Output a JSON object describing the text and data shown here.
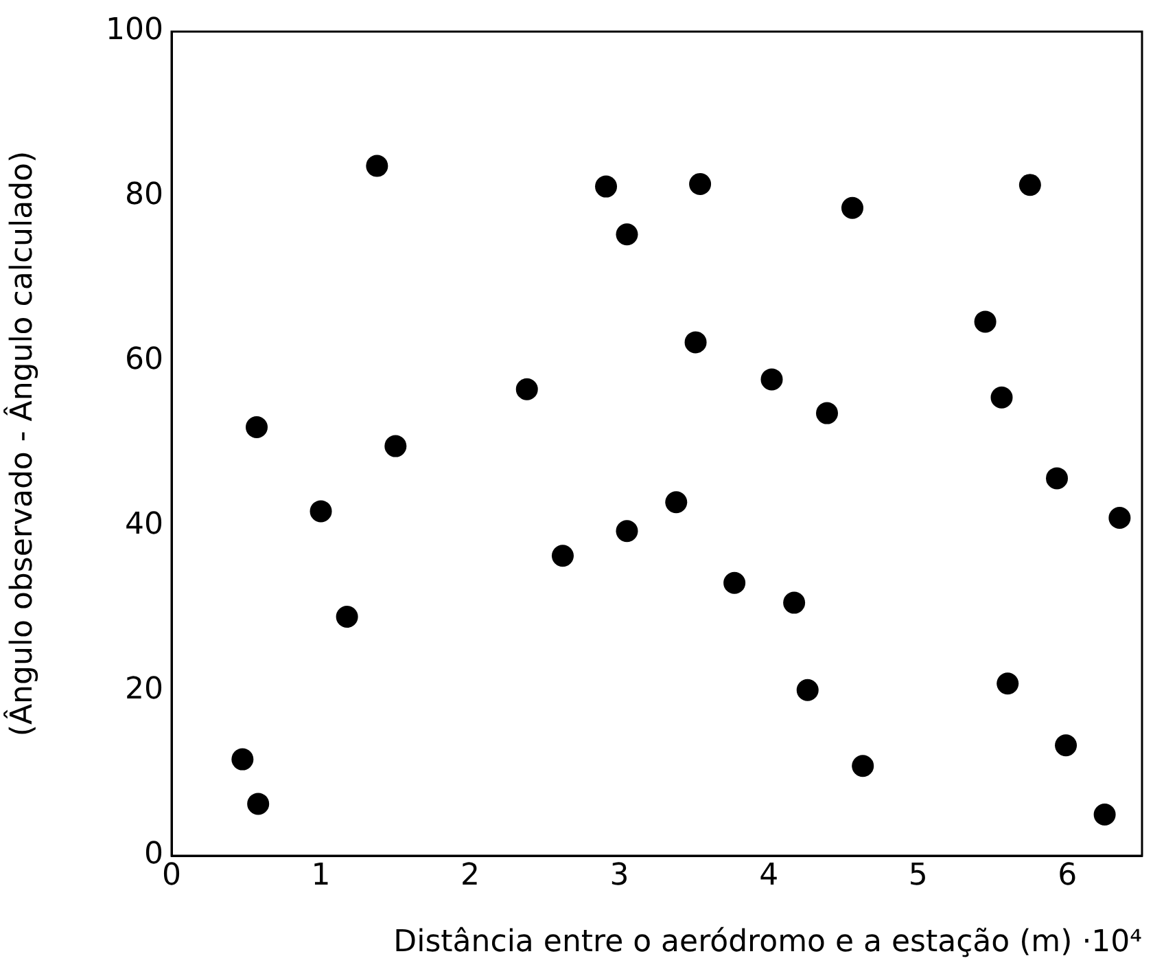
{
  "chart_data": {
    "type": "scatter",
    "xlabel": "Distância entre o aeródromo e a estação (m) ·10⁴",
    "ylabel": "(Ângulo observado - Ângulo calculado)",
    "xlim": [
      0,
      6.5
    ],
    "xticks": [
      0,
      1,
      2,
      3,
      4,
      5,
      6
    ],
    "ylim": [
      0,
      100
    ],
    "yticks": [
      0,
      20,
      40,
      60,
      80,
      100
    ],
    "grid": false,
    "legend": false,
    "marker": "circle",
    "series": [
      {
        "color": "#000000",
        "x": [
          0.475,
          0.58,
          1.0,
          1.175,
          1.5,
          2.62,
          3.05,
          1.376,
          0.57,
          2.38,
          2.91,
          3.05,
          3.54,
          4.56,
          5.75,
          3.51,
          4.02,
          4.39,
          5.45,
          5.56,
          3.38,
          3.77,
          4.17,
          4.26,
          4.63,
          5.93,
          6.35,
          5.6,
          5.99,
          6.25
        ],
        "values": [
          11.7,
          6.3,
          41.8,
          29.0,
          49.7,
          36.4,
          39.4,
          83.7,
          52.0,
          56.6,
          81.2,
          75.4,
          81.5,
          78.6,
          81.4,
          62.3,
          57.8,
          53.7,
          64.8,
          55.6,
          42.9,
          33.1,
          30.7,
          20.1,
          10.9,
          45.8,
          41.0,
          20.9,
          13.4,
          5.0
        ]
      }
    ]
  }
}
